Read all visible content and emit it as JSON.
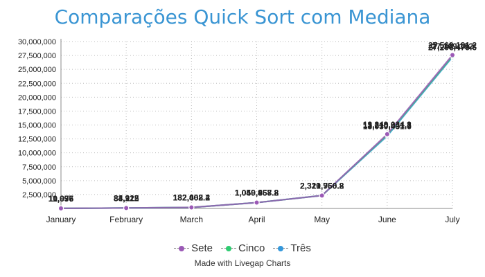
{
  "title": "Comparações Quick Sort com Mediana",
  "credit": "Made with Livegap Charts",
  "chart_data": {
    "type": "line",
    "title": "Comparações Quick Sort com Mediana",
    "categories": [
      "January",
      "February",
      "March",
      "April",
      "May",
      "June",
      "July"
    ],
    "ylim": [
      0,
      30000000
    ],
    "yticks": [
      2500000,
      5000000,
      7500000,
      10000000,
      12500000,
      15000000,
      17500000,
      20000000,
      22500000,
      25000000,
      27500000,
      30000000
    ],
    "ytick_labels": [
      "2,500,000",
      "5,000,000",
      "7,500,000",
      "10,000,000",
      "12,500,000",
      "15,000,000",
      "17,500,000",
      "20,000,000",
      "22,500,000",
      "25,000,000",
      "27,500,000",
      "30,000,000"
    ],
    "grid": true,
    "legend_position": "bottom",
    "series": [
      {
        "name": "Sete",
        "color": "#9b59b6",
        "values": [
          11096,
          84212,
          182663.2,
          1050857.2,
          2321960.8,
          13349034.3,
          27569181.2
        ],
        "labels": [
          "11,096",
          "84,212",
          "182,663.2",
          "1,050,857.2",
          "2,321,960.8",
          "13,349,034.3",
          "27,569,181.2"
        ]
      },
      {
        "name": "Cinco",
        "color": "#2ecc71",
        "values": [
          11037,
          84112,
          182408.4,
          1049958.8,
          2320756.8,
          13210841.3,
          27369182
        ],
        "labels": [
          "11,037",
          "84,112",
          "182,408.4",
          "1,049,958.8",
          "2,320,756.8",
          "13,210,841.3",
          "27,369,182"
        ]
      },
      {
        "name": "Três",
        "color": "#3498db",
        "values": [
          10976,
          83925,
          182002.2,
          1049467.8,
          2319760.2,
          13030431.6,
          27206479.6
        ],
        "labels": [
          "10,976",
          "83,925",
          "182,002.2",
          "1,049,467.8",
          "2,319,760.2",
          "13,030,431.6",
          "27,206,479.6"
        ]
      }
    ]
  }
}
